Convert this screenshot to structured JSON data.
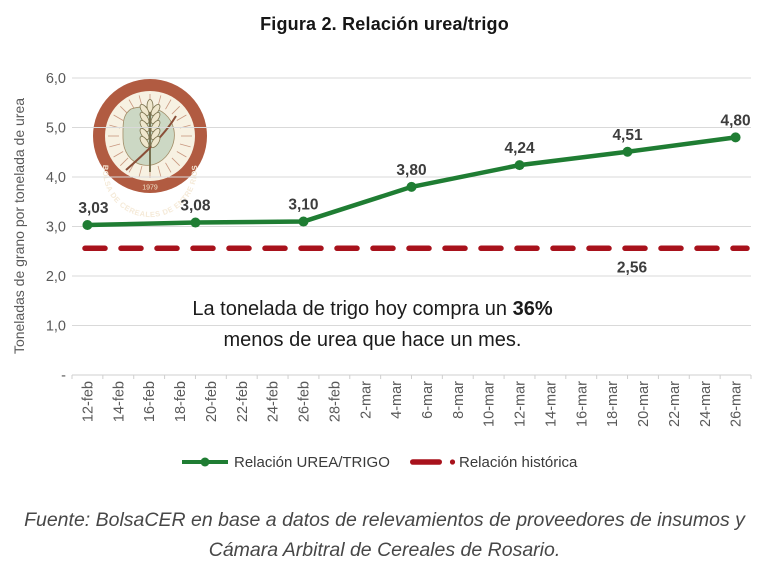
{
  "title": "Figura 2. Relación urea/trigo",
  "chart_data": {
    "type": "line",
    "title": "Figura 2. Relación urea/trigo",
    "ylabel": "Toneladas de grano por tonelada de urea",
    "ylim": [
      0,
      6
    ],
    "ytick_labels": [
      "-",
      "1,0",
      "2,0",
      "3,0",
      "4,0",
      "5,0",
      "6,0"
    ],
    "x_labels": [
      "12-feb",
      "14-feb",
      "16-feb",
      "18-feb",
      "20-feb",
      "22-feb",
      "24-feb",
      "26-feb",
      "28-feb",
      "2-mar",
      "4-mar",
      "6-mar",
      "8-mar",
      "10-mar",
      "12-mar",
      "14-mar",
      "16-mar",
      "18-mar",
      "20-mar",
      "22-mar",
      "24-mar",
      "26-mar"
    ],
    "grid": true,
    "legend_position": "bottom",
    "series": [
      {
        "name": "Relación UREA/TRIGO",
        "type": "line_markers",
        "points": [
          {
            "x_frac": 0.0,
            "value": 3.03,
            "label": "3,03"
          },
          {
            "x_frac": 0.1667,
            "value": 3.08,
            "label": "3,08"
          },
          {
            "x_frac": 0.3333,
            "value": 3.1,
            "label": "3,10"
          },
          {
            "x_frac": 0.5,
            "value": 3.8,
            "label": "3,80"
          },
          {
            "x_frac": 0.6667,
            "value": 4.24,
            "label": "4,24"
          },
          {
            "x_frac": 0.8333,
            "value": 4.51,
            "label": "4,51"
          },
          {
            "x_frac": 1.0,
            "value": 4.8,
            "label": "4,80"
          }
        ]
      },
      {
        "name": "Relación histórica",
        "type": "dashed_constant",
        "value": 2.56,
        "label": "2,56"
      }
    ]
  },
  "logo": {
    "ring_text": "BOLSA DE CEREALES DE ENTRE RÍOS",
    "year": "1979"
  },
  "annotation": {
    "line1_prefix": "La tonelada de trigo hoy compra un ",
    "line1_bold": "36%",
    "line2": "menos de urea que hace un mes."
  },
  "footer": {
    "line1": "Fuente: BolsaCER en base a datos de relevamientos de proveedores de insumos y",
    "line2": "Cámara Arbitral de Cereales de Rosario."
  },
  "colors": {
    "series_green": "#1f7d33",
    "historical_red": "#a8121c",
    "grid": "#d9d9d9",
    "axis_line": "#cfcfcf",
    "axis_text": "#595959",
    "label_text": "#3d3d3d",
    "legend_text": "#3a3a3a",
    "logo_ring": "#b15b41",
    "logo_bg": "#f7f1e2",
    "logo_map": "#ccd8c4",
    "logo_ring_text": "#f5ead8"
  }
}
